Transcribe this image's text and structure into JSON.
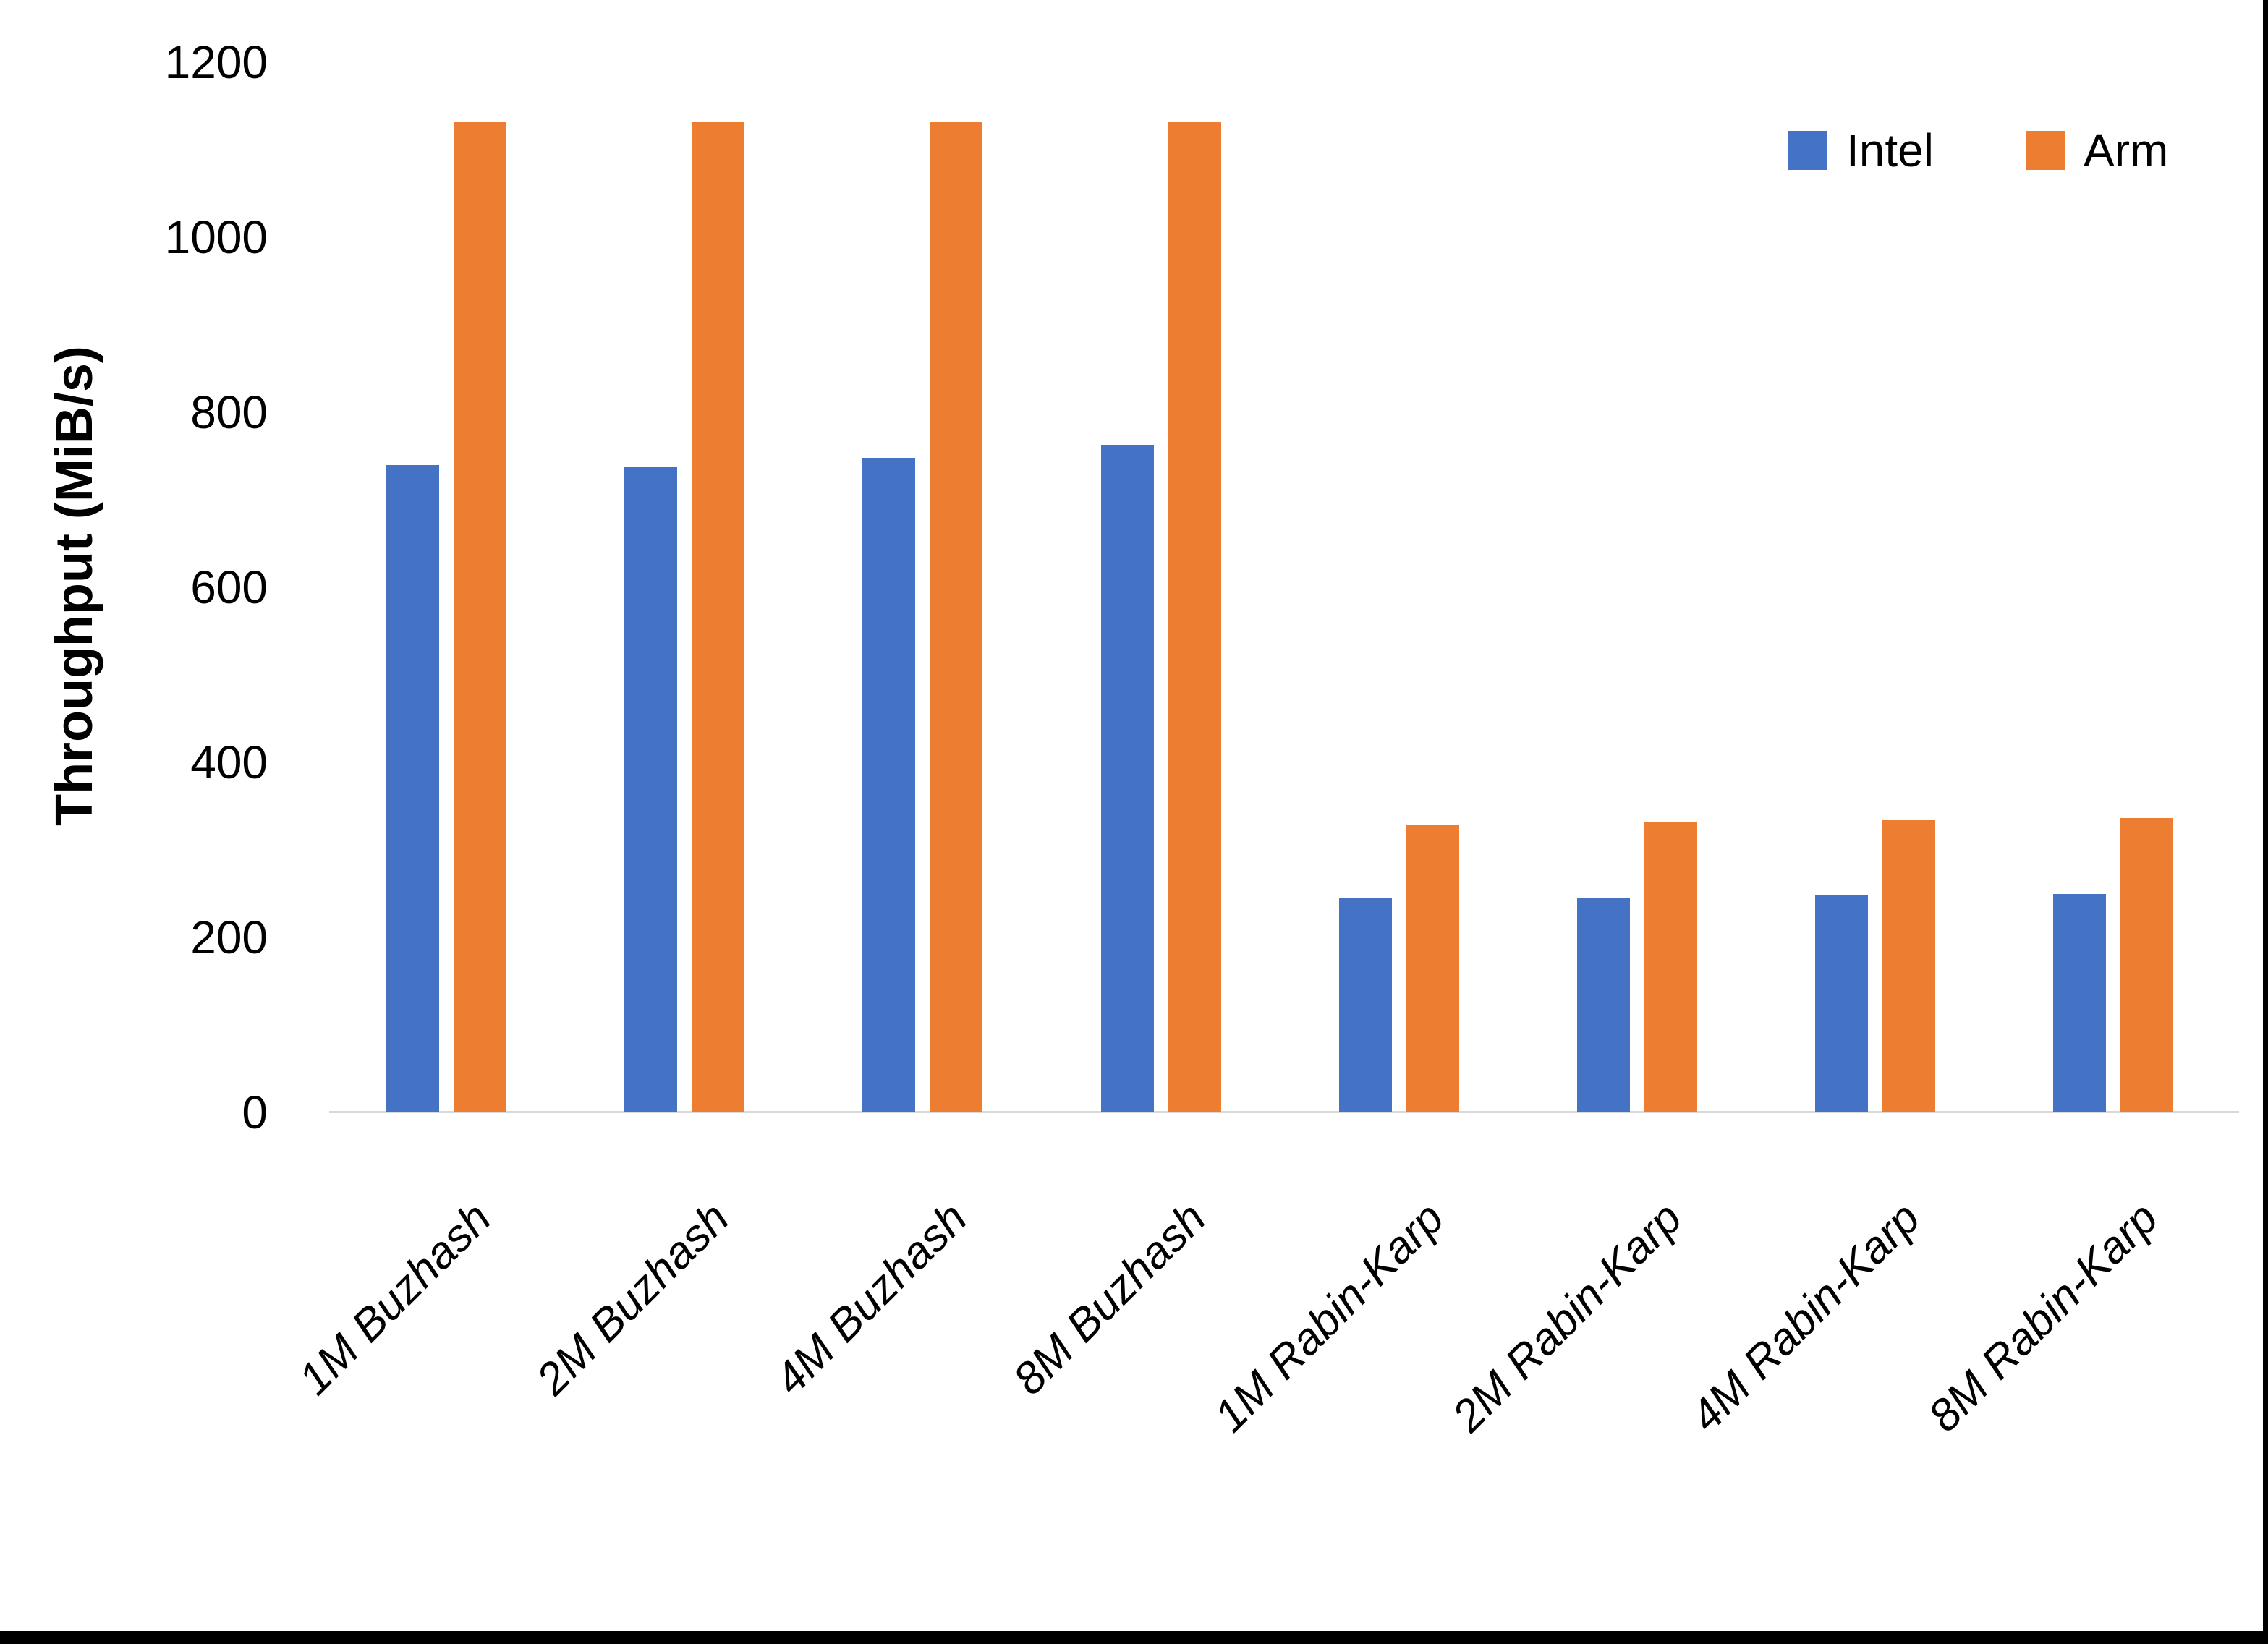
{
  "chart_data": {
    "type": "bar",
    "title": "",
    "xlabel": "",
    "ylabel": "Throughput (MiB/s)",
    "ylim": [
      0,
      1200
    ],
    "yticks": [
      0,
      200,
      400,
      600,
      800,
      1000,
      1200
    ],
    "grid": false,
    "legend_position": "top-right",
    "categories": [
      "1M Buzhash",
      "2M Buzhash",
      "4M Buzhash",
      "8M Buzhash",
      "1M Rabin-Karp",
      "2M Rabin-Karp",
      "4M Rabin-Karp",
      "8M Rabin-Karp"
    ],
    "series": [
      {
        "name": "Intel",
        "color": "#4472C4",
        "values": [
          740,
          738,
          748,
          763,
          245,
          245,
          249,
          250
        ]
      },
      {
        "name": "Arm",
        "color": "#ED7D31",
        "values": [
          1131,
          1131,
          1131,
          1131,
          328,
          331,
          334,
          336
        ]
      }
    ]
  },
  "colors": {
    "background": "#FFFFFF",
    "axis_line": "#D9D9D9",
    "text": "#000000",
    "frame_edge": "#000000"
  }
}
